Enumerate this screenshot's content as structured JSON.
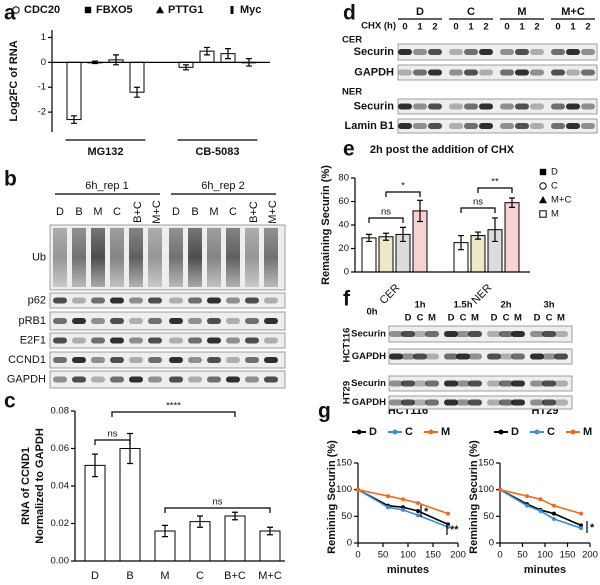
{
  "panel_labels": [
    "a",
    "b",
    "c",
    "d",
    "e",
    "f",
    "g"
  ],
  "chart_data": [
    {
      "type": "bar",
      "ylabel": "Log2FC of RNA",
      "categories": [
        "MG132",
        "CB-5083"
      ],
      "series": [
        {
          "name": "CDC20",
          "marker": "circle",
          "color": "#ffffff",
          "values": [
            -2.3,
            -0.2
          ],
          "errors": [
            0.15,
            0.1
          ]
        },
        {
          "name": "FBXO5",
          "marker": "square",
          "color": "#ffffff",
          "values": [
            0.0,
            0.45
          ],
          "errors": [
            0.05,
            0.15
          ]
        },
        {
          "name": "PTTG1",
          "marker": "triangle",
          "color": "#ffffff",
          "values": [
            0.1,
            0.35
          ],
          "errors": [
            0.2,
            0.2
          ]
        },
        {
          "name": "Myc",
          "marker": "bar",
          "color": "#ffffff",
          "values": [
            -1.2,
            0.0
          ],
          "errors": [
            0.2,
            0.15
          ]
        }
      ],
      "ylim": [
        -2.8,
        1.3
      ],
      "yticks": [
        -2,
        -1,
        0,
        1
      ]
    },
    {
      "type": "bar",
      "ylabel": [
        "RNA of CCND1",
        "Normalized to GAPDH"
      ],
      "categories": [
        "D",
        "B",
        "M",
        "C",
        "B+C",
        "M+C"
      ],
      "values": [
        0.051,
        0.06,
        0.016,
        0.021,
        0.024,
        0.016
      ],
      "errors": [
        0.006,
        0.008,
        0.003,
        0.003,
        0.002,
        0.002
      ],
      "color": "#ffffff",
      "ylim": [
        0,
        0.08
      ],
      "yticks": [
        {
          "value": 0,
          "label": "0.00"
        },
        {
          "value": 0.02,
          "label": "0.02"
        },
        {
          "value": 0.04,
          "label": "0.04"
        },
        {
          "value": 0.06,
          "label": "0.06"
        },
        {
          "value": 0.08,
          "label": "0.08"
        }
      ],
      "annotations": [
        "ns",
        "****",
        "ns"
      ]
    },
    {
      "type": "bar",
      "title": "2h post the addition of CHX",
      "ylabel": "Remaining Securin (%)",
      "categories": [
        "CER",
        "NER"
      ],
      "series": [
        {
          "name": "D",
          "marker": "square",
          "color": "#ffffff",
          "values": [
            29,
            25
          ],
          "errors": [
            3,
            6
          ]
        },
        {
          "name": "C",
          "marker": "circle",
          "color": "#ece8c8",
          "values": [
            30,
            31
          ],
          "errors": [
            3,
            3
          ]
        },
        {
          "name": "M+C",
          "marker": "triangle",
          "color": "#dcdcdc",
          "values": [
            32,
            36
          ],
          "errors": [
            6,
            10
          ]
        },
        {
          "name": "M",
          "marker": "open-square",
          "color": "#f7d2d2",
          "values": [
            52,
            59
          ],
          "errors": [
            9,
            4
          ]
        }
      ],
      "ylim": [
        0,
        80
      ],
      "yticks": [
        0,
        20,
        40,
        60,
        80
      ],
      "annotations": [
        "ns",
        "*",
        "ns",
        "**"
      ]
    },
    {
      "type": "line",
      "title": "HCT116",
      "xlabel": "minutes",
      "ylabel": "Remining Securin (%)",
      "x": [
        0,
        60,
        90,
        120,
        180
      ],
      "series": [
        {
          "name": "D",
          "color": "#000000",
          "values": [
            100,
            70,
            67,
            60,
            35
          ]
        },
        {
          "name": "C",
          "color": "#3a8fd6",
          "values": [
            100,
            67,
            62,
            52,
            30
          ]
        },
        {
          "name": "M",
          "color": "#f06a1d",
          "values": [
            100,
            88,
            82,
            75,
            55
          ]
        }
      ],
      "xlim": [
        0,
        200
      ],
      "ylim": [
        0,
        150
      ],
      "xticks": [
        0,
        50,
        100,
        150,
        200
      ],
      "yticks": [
        0,
        50,
        100,
        150
      ],
      "annotations": [
        "*",
        "**"
      ]
    },
    {
      "type": "line",
      "title": "HT29",
      "xlabel": "minutes",
      "ylabel": "Remining Securin (%)",
      "x": [
        0,
        60,
        90,
        120,
        180
      ],
      "series": [
        {
          "name": "D",
          "color": "#000000",
          "values": [
            100,
            73,
            62,
            55,
            33
          ]
        },
        {
          "name": "C",
          "color": "#3a8fd6",
          "values": [
            100,
            70,
            60,
            45,
            28
          ]
        },
        {
          "name": "M",
          "color": "#f06a1d",
          "values": [
            100,
            88,
            82,
            70,
            55
          ]
        }
      ],
      "xlim": [
        0,
        200
      ],
      "ylim": [
        0,
        150
      ],
      "xticks": [
        0,
        50,
        100,
        150,
        200
      ],
      "yticks": [
        0,
        50,
        100,
        150
      ],
      "annotations": [
        "*"
      ]
    }
  ],
  "blot_b": {
    "groups": [
      "6h_rep 1",
      "6h_rep 2"
    ],
    "lanes": [
      "D",
      "B",
      "M",
      "C",
      "B+C",
      "M+C"
    ],
    "rows": [
      "Ub",
      "p62",
      "pRB1",
      "E2F1",
      "CCND1",
      "GAPDH"
    ]
  },
  "blot_d": {
    "axis_label": "CHX (h)",
    "groups": [
      "D",
      "C",
      "M",
      "M+C"
    ],
    "lanes": [
      "0",
      "1",
      "2"
    ],
    "sections": [
      {
        "label": "CER",
        "rows": [
          "Securin",
          "GAPDH"
        ]
      },
      {
        "label": "NER",
        "rows": [
          "Securin",
          "Lamin B1"
        ]
      }
    ]
  },
  "blot_f": {
    "times": [
      "0h",
      "1h",
      "1.5h",
      "2h",
      "3h"
    ],
    "lanes": [
      "D",
      "C",
      "M"
    ],
    "sections": [
      {
        "label": "HCT116",
        "rows": [
          "Securin",
          "GAPDH"
        ]
      },
      {
        "label": "HT29",
        "rows": [
          "Securin",
          "GAPDH"
        ]
      }
    ]
  }
}
